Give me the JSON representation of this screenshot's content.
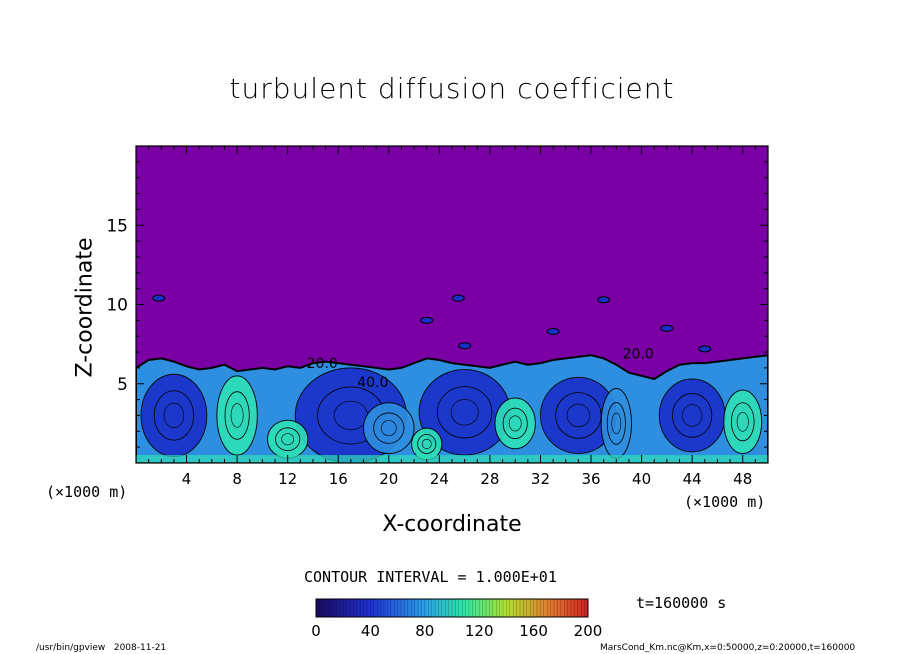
{
  "chart_data": {
    "type": "heatmap",
    "title": "turbulent diffusion coefficient",
    "xlabel": "X-coordinate",
    "ylabel": "Z-coordinate",
    "x_unit": "(×1000 m)",
    "y_unit": "(×1000 m)",
    "xlim": [
      0,
      50
    ],
    "ylim": [
      0,
      20
    ],
    "xticks": [
      4,
      8,
      12,
      16,
      20,
      24,
      28,
      32,
      36,
      40,
      44,
      48
    ],
    "yticks": [
      5,
      10,
      15
    ],
    "contour_interval_label": "CONTOUR INTERVAL = 1.000E+01",
    "contour_labels": [
      "20.0",
      "40.0",
      "20.0"
    ],
    "colorbar": {
      "min": 0,
      "max": 200,
      "ticks": [
        0,
        40,
        80,
        120,
        160,
        200
      ]
    },
    "time_label": "t=160000 s",
    "colors": {
      "background_field": "#7a00a6",
      "low": "#1a2fc8",
      "mid": "#2e8fe0",
      "high": "#2ee0b8"
    }
  },
  "footer": {
    "left": "/usr/bin/gpview   2008-11-21",
    "right": "MarsCond_Km.nc@Km,x=0:50000,z=0:20000,t=160000"
  }
}
